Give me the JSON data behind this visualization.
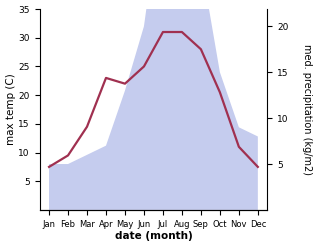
{
  "months": [
    "Jan",
    "Feb",
    "Mar",
    "Apr",
    "May",
    "Jun",
    "Jul",
    "Aug",
    "Sep",
    "Oct",
    "Nov",
    "Dec"
  ],
  "month_indices": [
    0,
    1,
    2,
    3,
    4,
    5,
    6,
    7,
    8,
    9,
    10,
    11
  ],
  "temperature": [
    7.5,
    9.5,
    14.5,
    23.0,
    22.0,
    25.0,
    31.0,
    31.0,
    28.0,
    20.5,
    11.0,
    7.5
  ],
  "precipitation": [
    5,
    5,
    6,
    7,
    13,
    20,
    35,
    33,
    27,
    15,
    9,
    8
  ],
  "temp_color": "#a03050",
  "precip_fill_color": "#c5ccee",
  "temp_ylim": [
    0,
    35
  ],
  "precip_ylim": [
    0,
    21.875
  ],
  "temp_yticks": [
    5,
    10,
    15,
    20,
    25,
    30,
    35
  ],
  "precip_yticks": [
    5,
    10,
    15,
    20
  ],
  "xlabel": "date (month)",
  "ylabel_left": "max temp (C)",
  "ylabel_right": "med. precipitation (kg/m2)",
  "background_color": "#ffffff"
}
